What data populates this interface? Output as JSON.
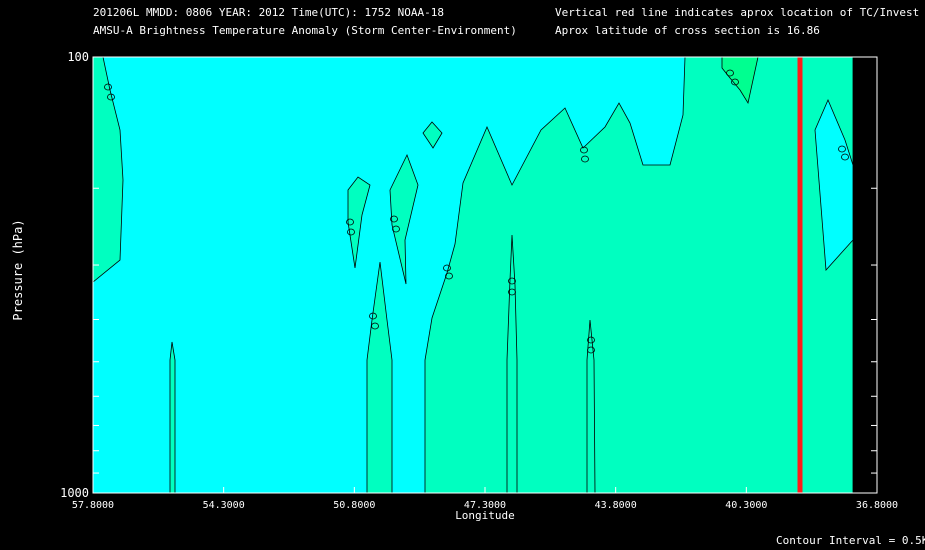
{
  "header": {
    "line1_left": "201206L  MMDD: 0806 YEAR: 2012 Time(UTC): 1752 NOAA-18",
    "line2_left": "AMSU-A Brightness Temperature Anomaly (Storm Center-Environment)",
    "line1_right": "Vertical red line indicates aprox location of TC/Invest",
    "line2_right": "Aprox latitude of cross section is 16.86"
  },
  "footer": {
    "contour_interval": "Contour Interval = 0.5K"
  },
  "colors": {
    "background": "#000000",
    "cold_fill": "#00ffff",
    "warm_fill": "#00ffc0",
    "warmer_fill": "#00ff90",
    "tc_line": "#ff1a1a"
  },
  "chart_data": {
    "type": "contour",
    "xlabel": "Longitude",
    "ylabel": "Pressure (hPa)",
    "x_ticks": [
      "57.8000",
      "54.3000",
      "50.8000",
      "47.3000",
      "43.8000",
      "40.3000",
      "36.8000"
    ],
    "x_range": [
      57.8,
      36.8
    ],
    "y_ticks": [
      "100",
      "1000"
    ],
    "y_range": [
      1000,
      100
    ],
    "y_scale": "log",
    "tc_longitude": 38.5,
    "contour_interval_K": 0.5,
    "contour_labels": [
      "0",
      "0",
      "0",
      "0",
      "0",
      "0",
      "0",
      "0",
      "0",
      "0",
      "0",
      "0",
      "0"
    ]
  }
}
